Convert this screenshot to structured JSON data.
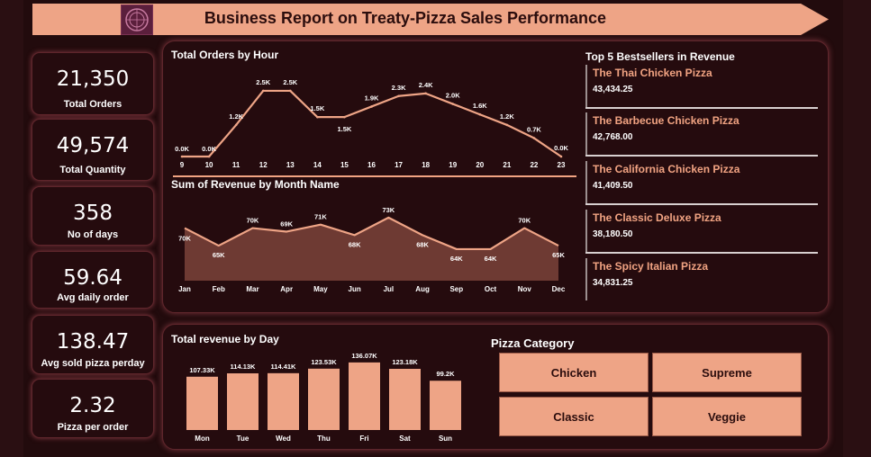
{
  "header": {
    "title": "Business Report on Treaty-Pizza Sales Performance"
  },
  "kpis": [
    {
      "value": "21,350",
      "label": "Total Orders"
    },
    {
      "value": "49,574",
      "label": "Total Quantity"
    },
    {
      "value": "358",
      "label": "No of days"
    },
    {
      "value": "59.64",
      "label": "Avg daily order"
    },
    {
      "value": "138.47",
      "label": "Avg sold pizza perday"
    },
    {
      "value": "2.32",
      "label": "Pizza per order"
    }
  ],
  "bestsellers": {
    "title": "Top 5 Bestsellers in Revenue",
    "items": [
      {
        "name": "The Thai Chicken Pizza",
        "value": "43,434.25"
      },
      {
        "name": "The Barbecue Chicken Pizza",
        "value": "42,768.00"
      },
      {
        "name": "The California Chicken Pizza",
        "value": "41,409.50"
      },
      {
        "name": "The Classic Deluxe Pizza",
        "value": "38,180.50"
      },
      {
        "name": "The Spicy Italian Pizza",
        "value": "34,831.25"
      }
    ]
  },
  "pizza_category": {
    "title": "Pizza Category",
    "items": [
      "Chicken",
      "Supreme",
      "Classic",
      "Veggie"
    ]
  },
  "colors": {
    "accent": "#eea486",
    "area_fill": "#6e3a33",
    "background": "#220b0d"
  },
  "chart_data": [
    {
      "type": "line",
      "title": "Total Orders by Hour",
      "x": [
        "9",
        "10",
        "11",
        "12",
        "13",
        "14",
        "15",
        "16",
        "17",
        "18",
        "19",
        "20",
        "21",
        "22",
        "23"
      ],
      "values": [
        0.0,
        0.0,
        1.2,
        2.5,
        2.5,
        1.5,
        1.5,
        1.9,
        2.3,
        2.4,
        2.0,
        1.6,
        1.2,
        0.7,
        0.0
      ],
      "labels": [
        "0.0K",
        "0.0K",
        "1.2K",
        "2.5K",
        "2.5K",
        "1.5K",
        "1.5K",
        "1.9K",
        "2.3K",
        "2.4K",
        "2.0K",
        "1.6K",
        "1.2K",
        "0.7K",
        "0.0K"
      ],
      "unit": "K"
    },
    {
      "type": "area",
      "title": "Sum of Revenue by Month Name",
      "x": [
        "Jan",
        "Feb",
        "Mar",
        "Apr",
        "May",
        "Jun",
        "Jul",
        "Aug",
        "Sep",
        "Oct",
        "Nov",
        "Dec"
      ],
      "values": [
        70,
        65,
        70,
        69,
        71,
        68,
        73,
        68,
        64,
        64,
        70,
        65
      ],
      "labels": [
        "70K",
        "65K",
        "70K",
        "69K",
        "71K",
        "68K",
        "73K",
        "68K",
        "64K",
        "64K",
        "70K",
        "65K"
      ],
      "unit": "K"
    },
    {
      "type": "bar",
      "title": "Total revenue by Day",
      "categories": [
        "Mon",
        "Tue",
        "Wed",
        "Thu",
        "Fri",
        "Sat",
        "Sun"
      ],
      "values": [
        107.33,
        114.13,
        114.41,
        123.53,
        136.07,
        123.18,
        99.2
      ],
      "labels": [
        "107.33K",
        "114.13K",
        "114.41K",
        "123.53K",
        "136.07K",
        "123.18K",
        "99.2K"
      ],
      "unit": "K"
    }
  ]
}
